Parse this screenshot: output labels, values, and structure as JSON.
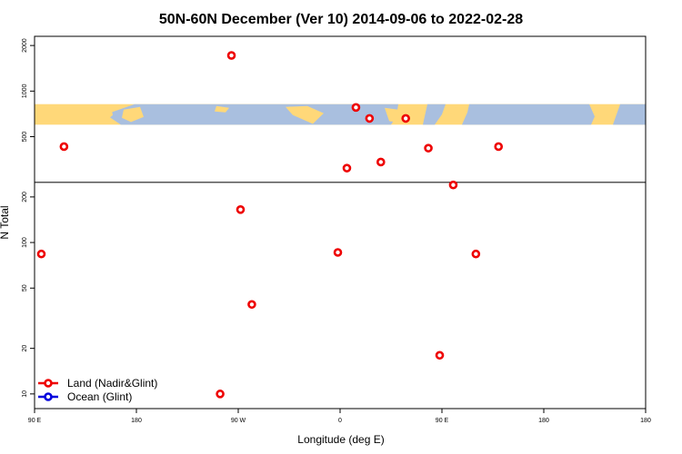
{
  "chart_data": {
    "type": "scatter",
    "title": "50N-60N December (Ver 10)   2014-09-06 to 2022-02-28",
    "xlabel": "Longitude (deg E)",
    "ylabel": "N Total",
    "y_scale": "log",
    "xlim": [
      -90,
      180
    ],
    "ylim": [
      8,
      2300
    ],
    "x_ticks": [
      {
        "value": -90,
        "label": "90 E"
      },
      {
        "value": -45,
        "label": "180"
      },
      {
        "value": 0,
        "label": "90 W"
      },
      {
        "value": 45,
        "label": "0"
      },
      {
        "value": 90,
        "label": "90 E"
      },
      {
        "value": 135,
        "label": "180"
      }
    ],
    "y_ticks": [
      {
        "value": 10,
        "label": "10"
      },
      {
        "value": 20,
        "label": "20"
      },
      {
        "value": 50,
        "label": "50"
      },
      {
        "value": 100,
        "label": "100"
      },
      {
        "value": 200,
        "label": "200"
      },
      {
        "value": 500,
        "label": "500"
      },
      {
        "value": 1000,
        "label": "1000"
      },
      {
        "value": 2000,
        "label": "2000"
      }
    ],
    "reference_line_y": 250,
    "map_band_y": [
      600,
      820
    ],
    "series": [
      {
        "name": "Land (Nadir&Glint)",
        "color": "#ee0000",
        "points": [
          {
            "x": -87,
            "y": 84
          },
          {
            "x": -77,
            "y": 430
          },
          {
            "x": -8,
            "y": 10
          },
          {
            "x": -3,
            "y": 1720
          },
          {
            "x": 1,
            "y": 165
          },
          {
            "x": 6,
            "y": 39
          },
          {
            "x": 44,
            "y": 86
          },
          {
            "x": 48,
            "y": 310
          },
          {
            "x": 52,
            "y": 780
          },
          {
            "x": 58,
            "y": 660
          },
          {
            "x": 63,
            "y": 340
          },
          {
            "x": 74,
            "y": 660
          },
          {
            "x": 84,
            "y": 420
          },
          {
            "x": 89,
            "y": 18
          },
          {
            "x": 95,
            "y": 240
          },
          {
            "x": 105,
            "y": 84
          },
          {
            "x": 115,
            "y": 430
          }
        ]
      },
      {
        "name": "Ocean (Glint)",
        "color": "#0000dd",
        "points": []
      }
    ],
    "legend_position": "bottom-left",
    "colors": {
      "map_land": "#ffd879",
      "map_ocean": "#a9bfdf"
    }
  }
}
